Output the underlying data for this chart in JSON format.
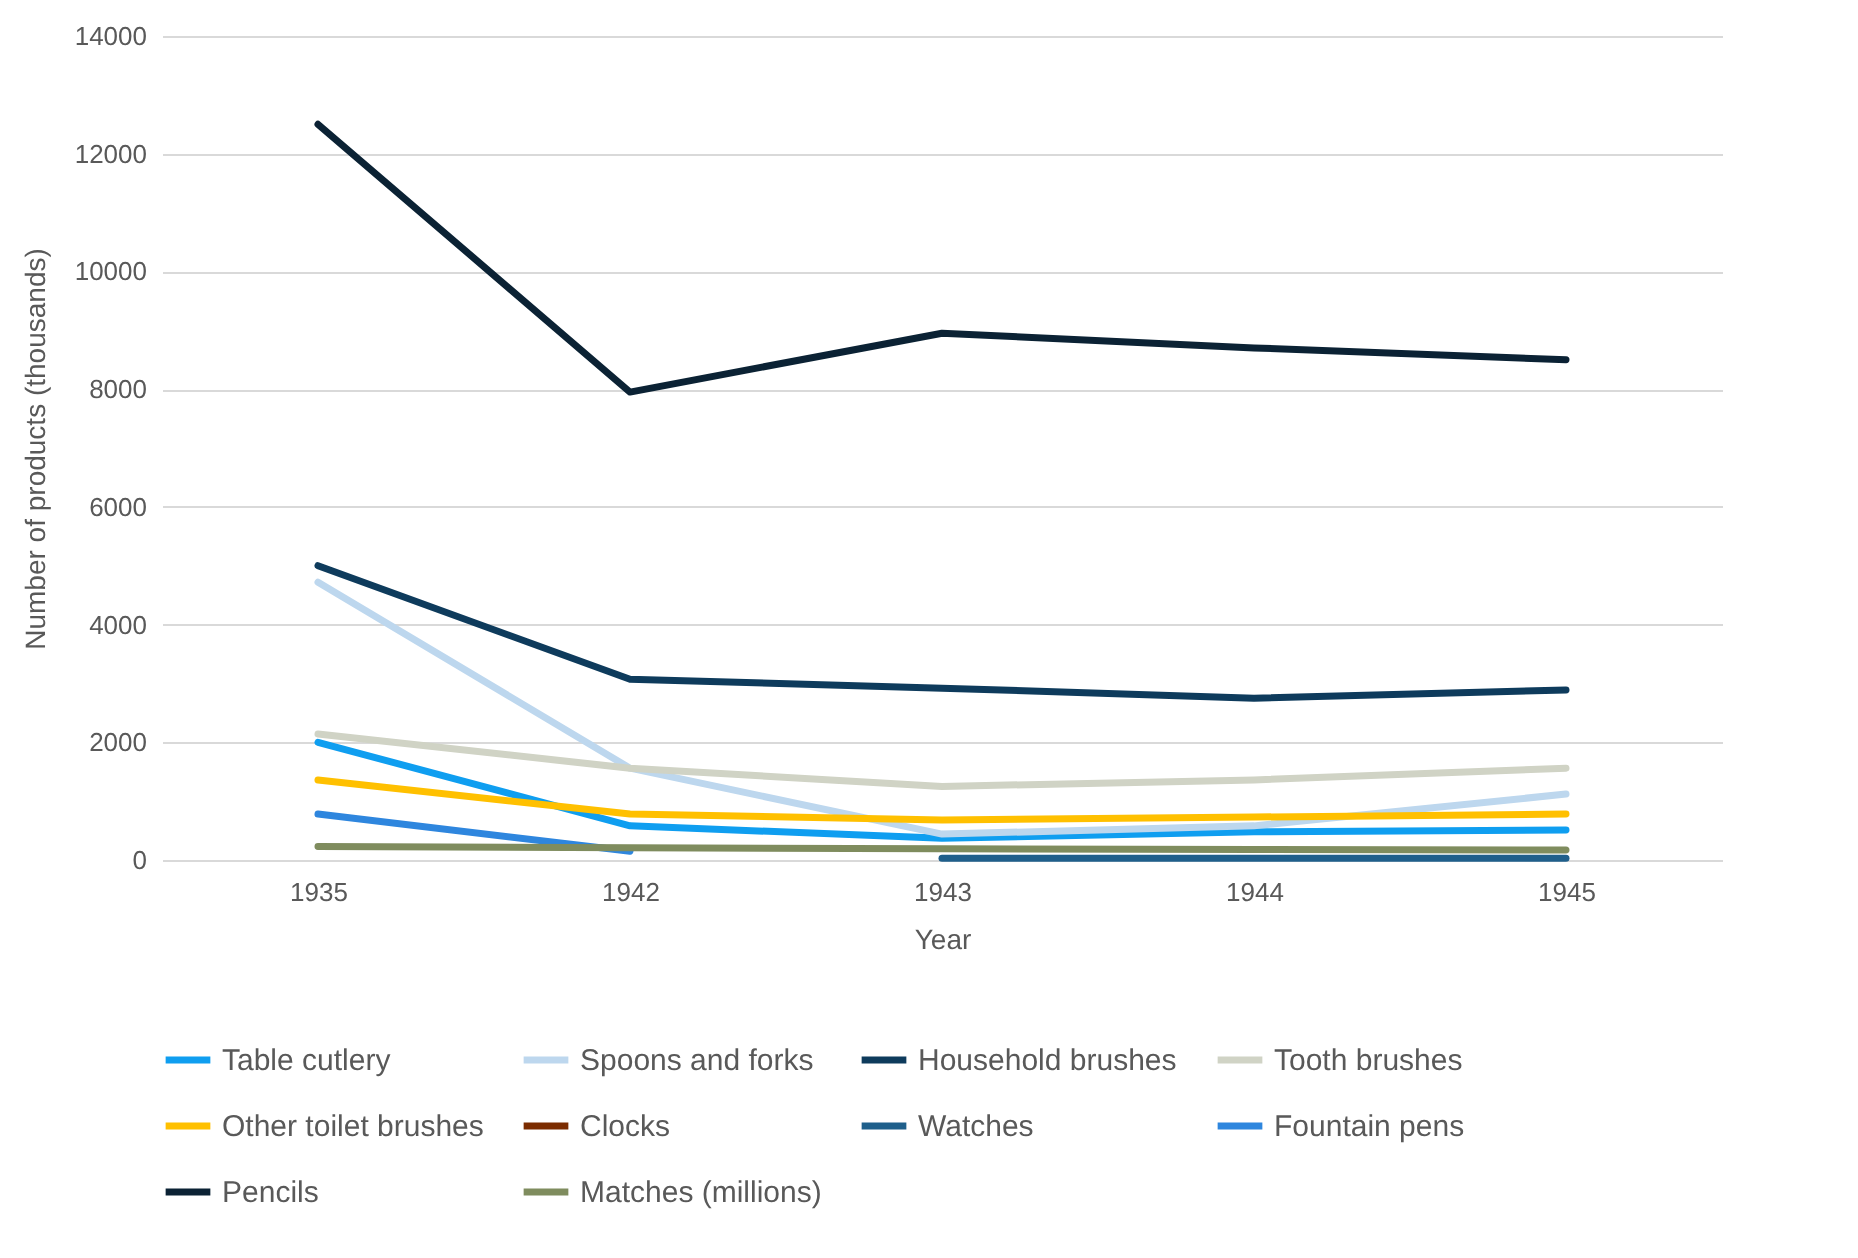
{
  "chart_data": {
    "type": "line",
    "xlabel": "Year",
    "ylabel": "Number  of products (thousands)",
    "categories": [
      "1935",
      "1942",
      "1943",
      "1944",
      "1945"
    ],
    "ylim": [
      0,
      14000
    ],
    "yticks": [
      0,
      2000,
      4000,
      6000,
      8000,
      10000,
      12000,
      14000
    ],
    "grid": "y",
    "legend": "bottom",
    "series": [
      {
        "name": "Table cutlery",
        "color": "#0f9ef0",
        "values": [
          2000,
          580,
          370,
          480,
          510
        ]
      },
      {
        "name": "Spoons and forks",
        "color": "#bdd7ee",
        "values": [
          4720,
          1560,
          440,
          580,
          1120
        ]
      },
      {
        "name": "Household brushes",
        "color": "#0e3b5c",
        "values": [
          5000,
          3070,
          2920,
          2750,
          2890
        ]
      },
      {
        "name": "Tooth brushes",
        "color": "#d0d3c5",
        "values": [
          2140,
          1560,
          1250,
          1360,
          1560
        ]
      },
      {
        "name": "Other toilet brushes",
        "color": "#ffc000",
        "values": [
          1360,
          780,
          680,
          730,
          780
        ]
      },
      {
        "name": "Clocks",
        "color": "#7b2c00",
        "values": [
          null,
          null,
          null,
          null,
          null
        ]
      },
      {
        "name": "Watches",
        "color": "#1f5f8b",
        "values": [
          null,
          null,
          30,
          30,
          30
        ]
      },
      {
        "name": "Fountain pens",
        "color": "#2e86de",
        "values": [
          780,
          150,
          null,
          null,
          null
        ]
      },
      {
        "name": "Pencils",
        "color": "#0b2234",
        "values": [
          12500,
          7950,
          8950,
          8700,
          8500
        ]
      },
      {
        "name": "Matches (millions)",
        "color": "#7f8c5e",
        "values": [
          230,
          210,
          190,
          180,
          170
        ]
      }
    ]
  }
}
